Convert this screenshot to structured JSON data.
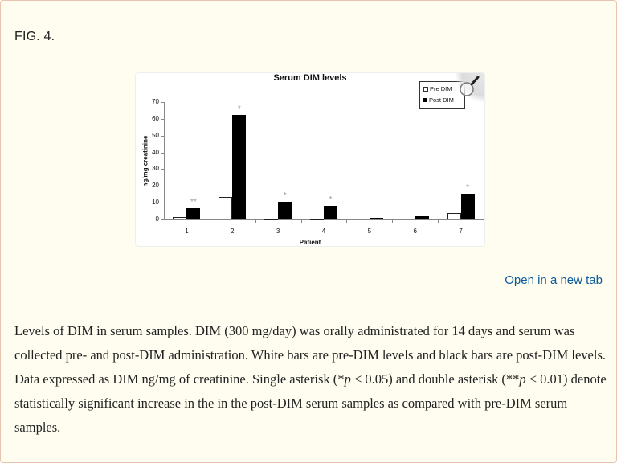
{
  "figure": {
    "label": "FIG. 4.",
    "open_link": "Open in a new tab",
    "caption_parts": {
      "p1": "Levels of DIM in serum samples. DIM (300 mg/day) was orally administrated for 14 days and serum was collected pre- and post-DIM administration. White bars are pre-DIM levels and black bars are post-DIM levels. Data expressed as DIM ng/mg of creatinine. Single asterisk (*",
      "p_italic_1": "p",
      "p2": " < 0.05) and double asterisk (**",
      "p_italic_2": "p",
      "p3": " < 0.01) denote statistically significant increase in the in the post-DIM serum samples as compared with pre-DIM serum samples."
    },
    "magnifier_icon": "magnifier-icon"
  },
  "chart_data": {
    "type": "bar",
    "title": "Serum DIM levels",
    "xlabel": "Patient",
    "ylabel": "ng/mg creatinine",
    "ylim": [
      0,
      70
    ],
    "yticks": [
      0,
      10,
      20,
      30,
      40,
      50,
      60,
      70
    ],
    "categories": [
      "1",
      "2",
      "3",
      "4",
      "5",
      "6",
      "7"
    ],
    "series": [
      {
        "name": "Pre DIM",
        "color": "#ffffff",
        "edge": "#222222",
        "values": [
          1.5,
          13.5,
          0,
          0,
          0.2,
          0.5,
          4
        ]
      },
      {
        "name": "Post DIM",
        "color": "#000000",
        "values": [
          6.5,
          62.5,
          10.5,
          8,
          1,
          2,
          15.5
        ]
      }
    ],
    "significance": [
      "**",
      "*",
      "*",
      "*",
      "",
      "",
      "*"
    ],
    "significance_color": "#999999",
    "legend_position": "top-right",
    "grid": false
  }
}
